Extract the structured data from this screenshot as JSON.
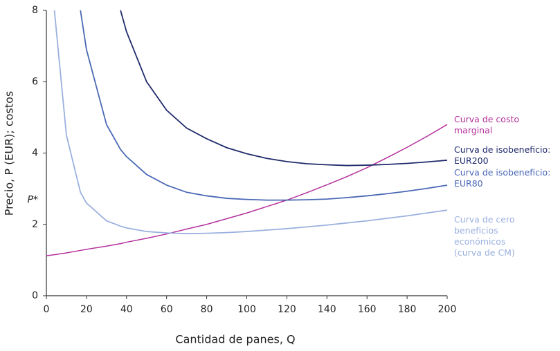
{
  "chart_data": {
    "type": "line",
    "x_label": "Cantidad de panes, Q",
    "y_label": "Precio, P (EUR); costos",
    "x": [
      0,
      4,
      10,
      17,
      20,
      30,
      37,
      40,
      50,
      60,
      70,
      80,
      90,
      100,
      110,
      120,
      130,
      140,
      150,
      160,
      170,
      180,
      190,
      200
    ],
    "series": [
      {
        "name": "Curva de costo\nmarginal",
        "color": "#b5309e",
        "values": [
          1.12,
          1.15,
          1.2,
          1.27,
          1.3,
          1.39,
          1.46,
          1.5,
          1.61,
          1.73,
          1.87,
          2.0,
          2.16,
          2.32,
          2.5,
          2.68,
          2.89,
          3.11,
          3.34,
          3.59,
          3.87,
          4.16,
          4.47,
          4.8
        ]
      },
      {
        "name": "Curva de isobeneficio:\nEUR200",
        "color": "#1f2a6b",
        "values": [
          null,
          null,
          null,
          null,
          null,
          null,
          8,
          7.4,
          6.0,
          5.2,
          4.7,
          4.4,
          4.15,
          3.98,
          3.85,
          3.76,
          3.7,
          3.67,
          3.65,
          3.66,
          3.68,
          3.71,
          3.75,
          3.8
        ]
      },
      {
        "name": "Curva de isobeneficio:\nEUR80",
        "color": "#4a68b5",
        "values": [
          null,
          null,
          null,
          8,
          6.9,
          4.8,
          4.1,
          3.9,
          3.4,
          3.1,
          2.9,
          2.8,
          2.73,
          2.7,
          2.68,
          2.68,
          2.69,
          2.71,
          2.75,
          2.8,
          2.86,
          2.93,
          3.01,
          3.1
        ]
      },
      {
        "name": "Curva de cero beneficios\neconómicos\n(curva de CM)",
        "color": "#9ab0de",
        "values": [
          null,
          8,
          4.5,
          2.9,
          2.6,
          2.1,
          1.95,
          1.9,
          1.8,
          1.76,
          1.74,
          1.75,
          1.77,
          1.8,
          1.84,
          1.88,
          1.93,
          1.98,
          2.04,
          2.1,
          2.17,
          2.24,
          2.32,
          2.4
        ]
      }
    ],
    "annotations": [
      {
        "text": "P*",
        "y": 2.68
      }
    ],
    "xlim": [
      0,
      200
    ],
    "xticks": [
      0,
      20,
      40,
      60,
      80,
      100,
      120,
      140,
      160,
      180,
      200
    ],
    "ylim": [
      0,
      8
    ],
    "yticks": [
      0,
      2,
      4,
      6,
      8
    ]
  }
}
